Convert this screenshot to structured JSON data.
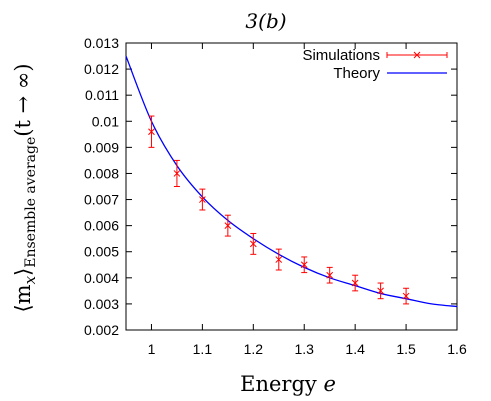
{
  "chart_data": {
    "type": "scatter",
    "title": "3(b)",
    "xlabel": "Energy e",
    "ylabel": "⟨mx⟩Ensemble average(t → ∞)",
    "ylabel_parts": {
      "base": "⟨m",
      "sub1": "x",
      "close": "⟩",
      "sub2": "Ensemble average",
      "tail": "(t → ∞)"
    },
    "xlim": [
      0.95,
      1.6
    ],
    "ylim": [
      0.002,
      0.013
    ],
    "x_ticks": [
      "1",
      "1.1",
      "1.2",
      "1.3",
      "1.4",
      "1.5",
      "1.6"
    ],
    "x_tick_values": [
      1,
      1.1,
      1.2,
      1.3,
      1.4,
      1.5,
      1.6
    ],
    "y_ticks": [
      "0.002",
      "0.003",
      "0.004",
      "0.005",
      "0.006",
      "0.007",
      "0.008",
      "0.009",
      "0.01",
      "0.011",
      "0.012",
      "0.013"
    ],
    "y_tick_values": [
      0.002,
      0.003,
      0.004,
      0.005,
      0.006,
      0.007,
      0.008,
      0.009,
      0.01,
      0.011,
      0.012,
      0.013
    ],
    "grid": false,
    "legend_position": "top-right",
    "series": [
      {
        "name": "Simulations",
        "kind": "errorbars",
        "color": "#ff0000",
        "x": [
          1.0,
          1.05,
          1.1,
          1.15,
          1.2,
          1.25,
          1.3,
          1.35,
          1.4,
          1.45,
          1.5
        ],
        "y": [
          0.0096,
          0.008,
          0.007,
          0.006,
          0.0053,
          0.0047,
          0.0045,
          0.0041,
          0.0038,
          0.0035,
          0.0033
        ],
        "err": [
          0.0006,
          0.0005,
          0.0004,
          0.0004,
          0.0004,
          0.0004,
          0.0003,
          0.0003,
          0.0003,
          0.0003,
          0.0003
        ]
      },
      {
        "name": "Theory",
        "kind": "line",
        "color": "#0000ff",
        "x": [
          0.95,
          1.0,
          1.05,
          1.1,
          1.15,
          1.2,
          1.25,
          1.3,
          1.35,
          1.4,
          1.45,
          1.5,
          1.55,
          1.6
        ],
        "y": [
          0.0125,
          0.01,
          0.0083,
          0.0071,
          0.0062,
          0.0055,
          0.0049,
          0.0044,
          0.004,
          0.0037,
          0.0034,
          0.0032,
          0.003,
          0.0029
        ]
      }
    ]
  }
}
